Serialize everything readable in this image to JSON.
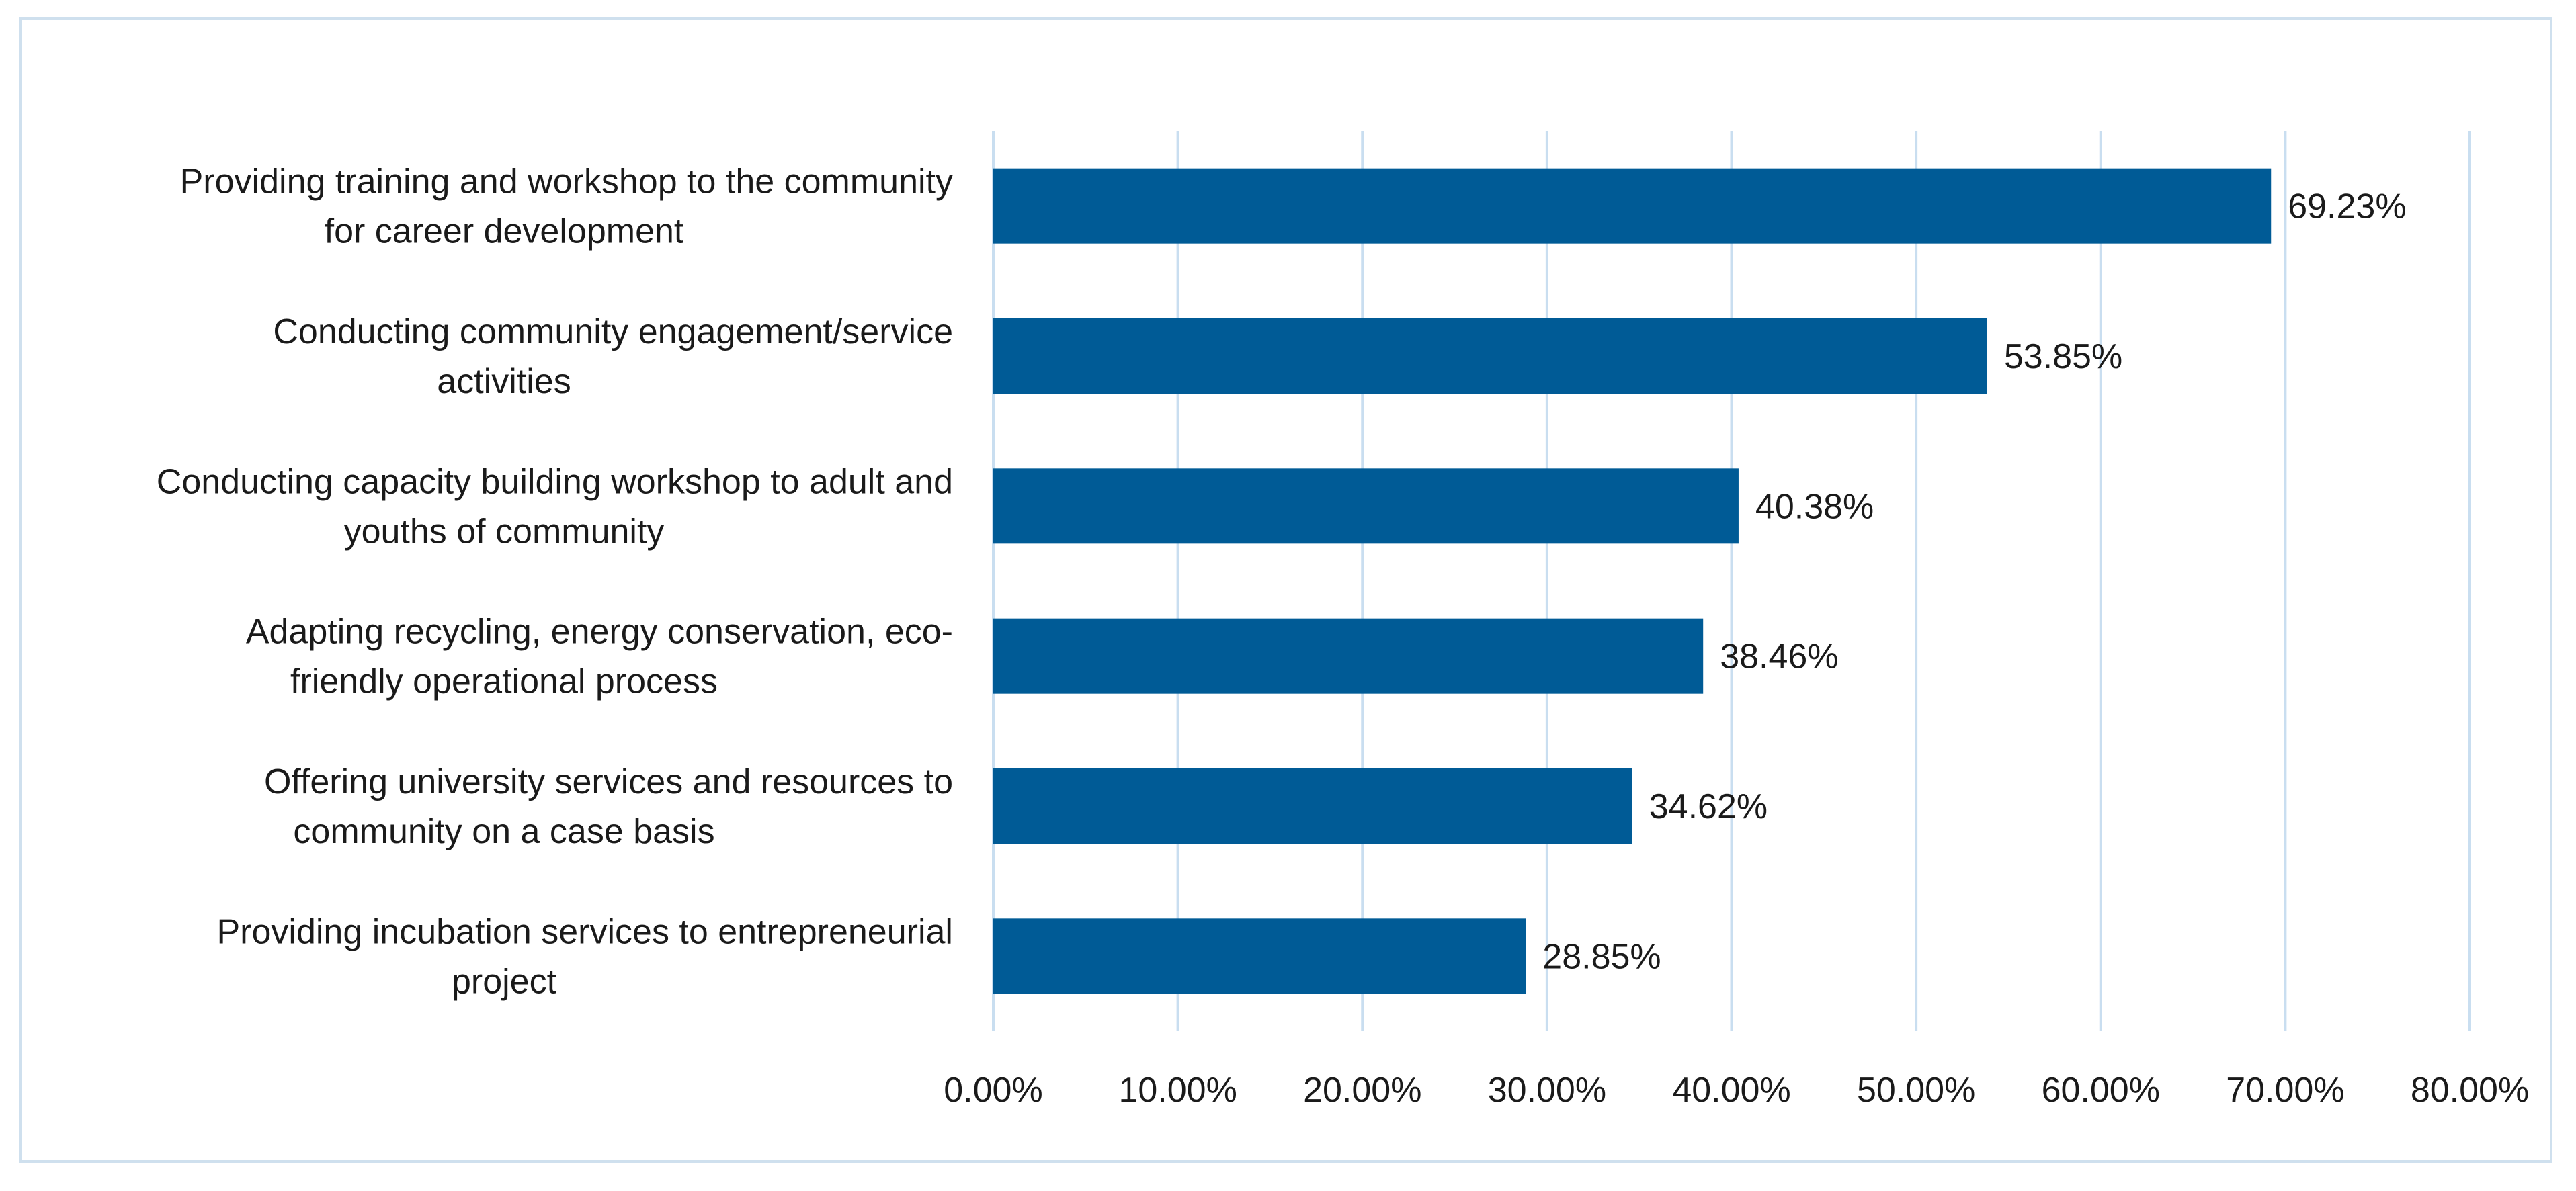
{
  "chart_data": {
    "type": "bar",
    "orientation": "horizontal",
    "title": "",
    "xlabel": "",
    "ylabel": "",
    "xlim": [
      0,
      80
    ],
    "grid": true,
    "bar_color": "#005b96",
    "grid_color": "#c9def0",
    "categories": [
      [
        "Providing training and workshop to the community",
        "for career development"
      ],
      [
        "Conducting community engagement/service",
        "activities"
      ],
      [
        "Conducting capacity building workshop to adult and",
        "youths of community"
      ],
      [
        "Adapting recycling, energy conservation, eco-",
        "friendly operational process"
      ],
      [
        "Offering university services and resources to",
        "community on a case basis"
      ],
      [
        "Providing incubation services to entrepreneurial",
        "project"
      ]
    ],
    "values": [
      69.23,
      53.85,
      40.38,
      38.46,
      34.62,
      28.85
    ],
    "data_labels": [
      "69.23%",
      "53.85%",
      "40.38%",
      "38.46%",
      "34.62%",
      "28.85%"
    ],
    "ticks": [
      0,
      10,
      20,
      30,
      40,
      50,
      60,
      70,
      80
    ],
    "tick_labels": [
      "0.00%",
      "10.00%",
      "20.00%",
      "30.00%",
      "40.00%",
      "50.00%",
      "60.00%",
      "70.00%",
      "80.00%"
    ]
  }
}
